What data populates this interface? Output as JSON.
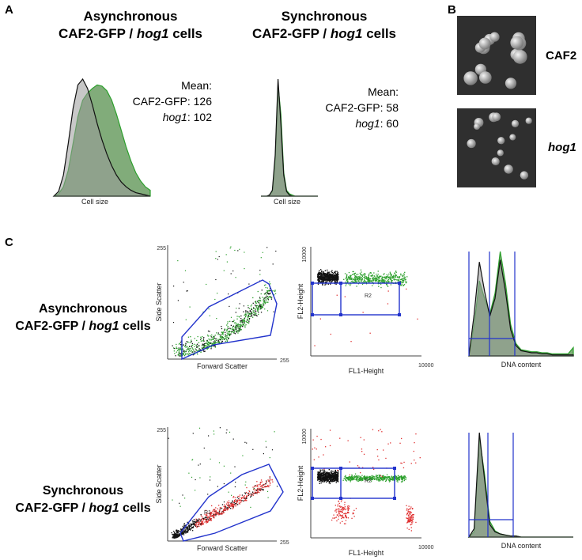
{
  "panels": {
    "a": "A",
    "b": "B",
    "c": "C"
  },
  "panel_a": {
    "left": {
      "title_line1": "Asynchronous",
      "title_prefix": "CAF2-GFP / ",
      "title_italic": "hog1",
      "title_suffix": " cells",
      "mean_label": "Mean:",
      "caf2_label": "CAF2-GFP: 126",
      "hog1_italic": "hog1",
      "hog1_value": ": 102",
      "xlabel": "Cell size"
    },
    "right": {
      "title_line1": "Synchronous",
      "title_prefix": "CAF2-GFP / ",
      "title_italic": "hog1",
      "title_suffix": " cells",
      "mean_label": "Mean:",
      "caf2_label": "CAF2-GFP: 58",
      "hog1_italic": "hog1",
      "hog1_value": ": 60",
      "xlabel": "Cell size"
    }
  },
  "panel_b": {
    "top_label": "CAF2",
    "bottom_label": "hog1"
  },
  "panel_c": {
    "rows": [
      {
        "line1": "Asynchronous",
        "prefix": "CAF2-GFP / ",
        "italic": "hog1",
        "suffix": " cells"
      },
      {
        "line1": "Synchronous",
        "prefix": "CAF2-GFP / ",
        "italic": "hog1",
        "suffix": " cells"
      }
    ],
    "scatter": {
      "xlabel": "Forward Scatter",
      "ylabel": "Side Scatter",
      "tick_max": "255",
      "gate_label": "R1"
    },
    "fluor": {
      "xlabel": "FL1-Height",
      "ylabel": "FL2-Height",
      "tick_max": "10000",
      "gate_label": "R2"
    },
    "dna": {
      "xlabel": "DNA content"
    }
  },
  "colors": {
    "green_fill": "#6b9e63",
    "green_line": "#2ca02c",
    "gray_fill": "#9a9a9a",
    "gate": "#2233cc",
    "red": "#e03030",
    "black": "#111111"
  },
  "chart_data": [
    {
      "type": "area",
      "title": "Asynchronous CAF2-GFP / hog1 cells",
      "xlabel": "Cell size",
      "ylabel": "",
      "x": [
        0,
        10,
        20,
        30,
        40,
        50,
        60,
        70,
        80,
        90,
        100,
        110,
        120,
        130,
        140,
        150,
        160,
        170,
        180,
        190,
        200
      ],
      "series": [
        {
          "name": "CAF2-GFP",
          "mean": 126,
          "values": [
            0,
            2,
            8,
            22,
            45,
            68,
            82,
            88,
            92,
            95,
            94,
            90,
            82,
            70,
            56,
            42,
            30,
            20,
            13,
            8,
            5
          ]
        },
        {
          "name": "hog1",
          "mean": 102,
          "values": [
            0,
            4,
            18,
            45,
            75,
            95,
            100,
            92,
            78,
            62,
            48,
            36,
            26,
            18,
            12,
            8,
            5,
            3,
            2,
            1,
            0
          ]
        }
      ]
    },
    {
      "type": "area",
      "title": "Synchronous CAF2-GFP / hog1 cells",
      "xlabel": "Cell size",
      "ylabel": "",
      "x": [
        0,
        10,
        20,
        30,
        40,
        50,
        60,
        70,
        80,
        90,
        100,
        110,
        120,
        130,
        140,
        150,
        160,
        170,
        180,
        190,
        200
      ],
      "series": [
        {
          "name": "CAF2-GFP",
          "mean": 58,
          "values": [
            0,
            0,
            0,
            1,
            4,
            30,
            95,
            70,
            20,
            5,
            2,
            1,
            0,
            0,
            0,
            0,
            0,
            0,
            0,
            0,
            0
          ]
        },
        {
          "name": "hog1",
          "mean": 60,
          "values": [
            0,
            0,
            0,
            1,
            5,
            35,
            100,
            62,
            18,
            4,
            1,
            0,
            0,
            0,
            0,
            0,
            0,
            0,
            0,
            0,
            0
          ]
        }
      ]
    },
    {
      "type": "area",
      "title": "Asynchronous DNA content",
      "xlabel": "DNA content",
      "ylabel": "",
      "x": [
        0,
        10,
        20,
        30,
        40,
        50,
        60,
        70,
        80,
        90,
        100,
        110,
        120,
        130,
        140,
        150,
        160,
        170,
        180,
        190,
        200
      ],
      "series": [
        {
          "name": "CAF2-GFP",
          "values": [
            0,
            30,
            72,
            55,
            40,
            60,
            100,
            70,
            30,
            12,
            6,
            5,
            4,
            4,
            3,
            3,
            2,
            2,
            2,
            2,
            8
          ]
        },
        {
          "name": "hog1",
          "values": [
            0,
            40,
            90,
            62,
            38,
            55,
            92,
            62,
            25,
            10,
            5,
            4,
            3,
            3,
            2,
            2,
            1,
            1,
            1,
            1,
            1
          ]
        }
      ]
    },
    {
      "type": "area",
      "title": "Synchronous DNA content",
      "xlabel": "DNA content",
      "ylabel": "",
      "x": [
        0,
        10,
        20,
        30,
        40,
        50,
        60,
        70,
        80,
        90,
        100,
        110,
        120,
        130,
        140,
        150,
        160,
        170,
        180,
        190,
        200
      ],
      "series": [
        {
          "name": "CAF2-GFP",
          "values": [
            0,
            5,
            95,
            60,
            15,
            6,
            3,
            2,
            1,
            1,
            0,
            0,
            0,
            0,
            0,
            0,
            0,
            0,
            0,
            0,
            0
          ]
        },
        {
          "name": "hog1",
          "values": [
            0,
            8,
            100,
            55,
            12,
            5,
            3,
            2,
            1,
            1,
            0,
            0,
            0,
            0,
            0,
            0,
            0,
            0,
            0,
            0,
            0
          ]
        }
      ]
    }
  ]
}
